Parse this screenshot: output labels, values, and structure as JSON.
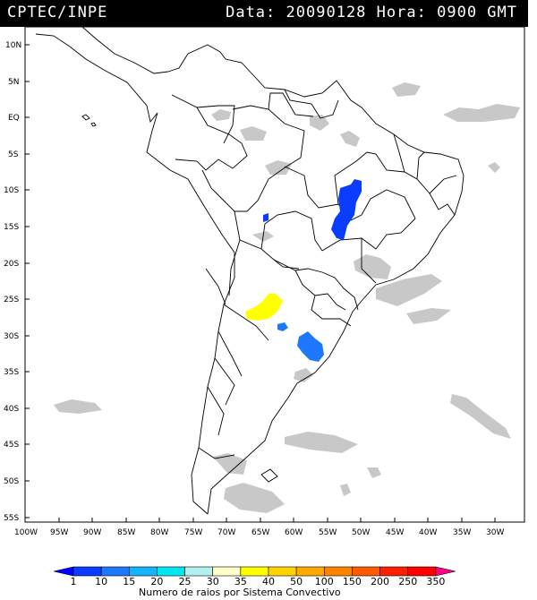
{
  "header": {
    "source": "CPTEC/INPE",
    "date_label": "Data:",
    "date": "20090128",
    "hour_label": "Hora:",
    "hour": "0900 GMT"
  },
  "map": {
    "lat_ticks": [
      "10N",
      "5N",
      "EQ",
      "5S",
      "10S",
      "15S",
      "20S",
      "25S",
      "30S",
      "35S",
      "40S",
      "45S",
      "50S",
      "55S"
    ],
    "lon_ticks": [
      "100W",
      "95W",
      "90W",
      "85W",
      "80W",
      "75W",
      "70W",
      "65W",
      "60W",
      "55W",
      "50W",
      "45W",
      "40W",
      "35W",
      "30W"
    ]
  },
  "legend": {
    "labels": [
      "1",
      "10",
      "15",
      "20",
      "25",
      "30",
      "35",
      "40",
      "50",
      "100",
      "150",
      "200",
      "250",
      "350"
    ],
    "colors": [
      "#0000ff",
      "#0a3cff",
      "#1e78ff",
      "#14b4ff",
      "#00e6f0",
      "#b4f0f0",
      "#ffffc8",
      "#ffff00",
      "#ffd200",
      "#ffaa00",
      "#ff8200",
      "#ff5a00",
      "#ff1e00",
      "#ff0000",
      "#ff0080"
    ],
    "title": "Numero de raios por Sistema Convectivo"
  }
}
